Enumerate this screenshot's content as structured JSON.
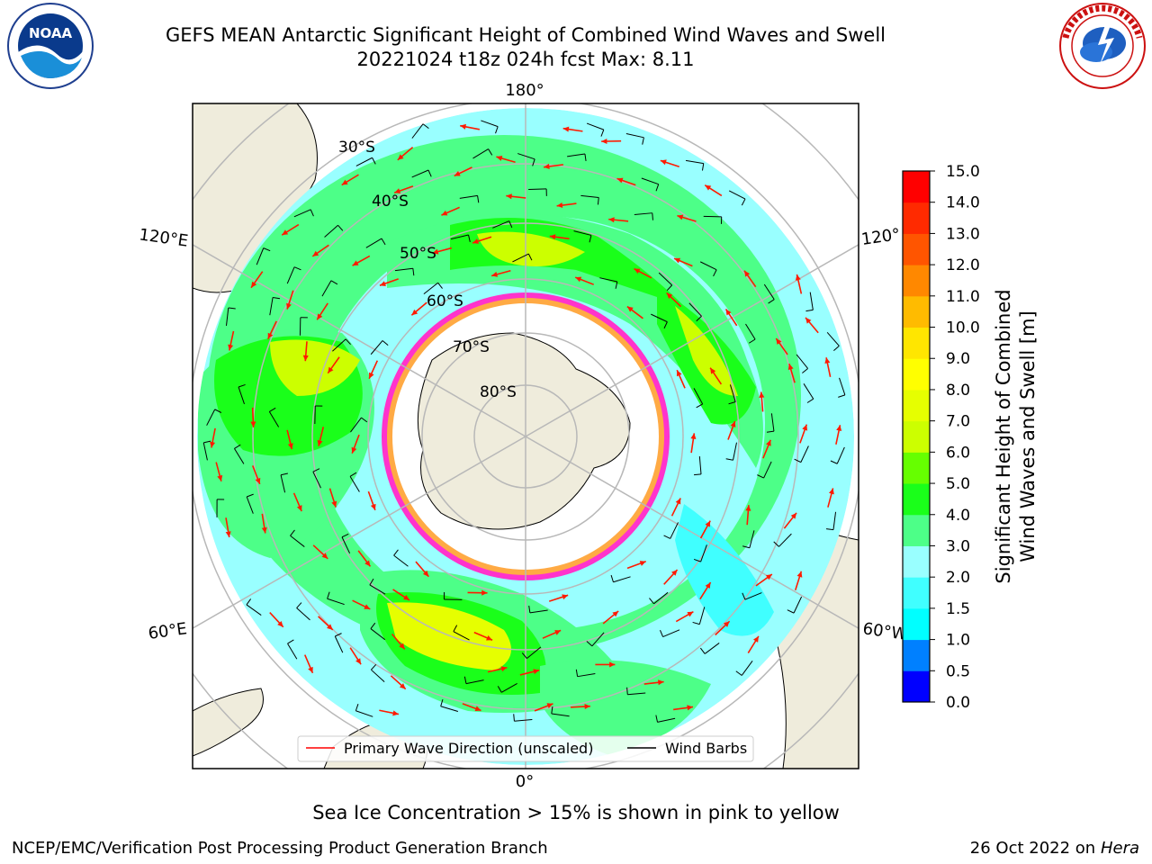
{
  "title": {
    "line1": "GEFS MEAN Antarctic Significant Height of Combined Wind Waves and Swell",
    "line2": "20221024 t18z 024h fcst   Max: 8.11"
  },
  "logos": {
    "left": {
      "icon": "noaa-logo",
      "text": "NOAA",
      "ring_text": "NATIONAL OCEANIC AND ATMOSPHERIC ADMINISTRATION · U.S. DEPARTMENT OF COMMERCE"
    },
    "right": {
      "icon": "nws-logo",
      "ring_text": "NATIONAL WEATHER SERVICE"
    }
  },
  "map": {
    "projection": "south-polar-stereographic",
    "lon_labels": [
      "180°",
      "120°E",
      "120°",
      "60°E",
      "60°W",
      "0°"
    ],
    "lat_labels": [
      "30°S",
      "40°S",
      "50°S",
      "60°S",
      "70°S",
      "80°S"
    ],
    "legend": [
      {
        "label": "Primary Wave Direction (unscaled)",
        "color": "#ff0000"
      },
      {
        "label": "Wind Barbs",
        "color": "#000000"
      }
    ],
    "colors": {
      "land": "#efecdc",
      "ice": "#ff33cc",
      "grid": "#b8b8b8"
    }
  },
  "colorbar": {
    "label_line1": "Significant Height of Combined",
    "label_line2": "Wind Waves and Swell [m]",
    "ticks": [
      "0.0",
      "0.5",
      "1.0",
      "1.5",
      "2.0",
      "3.0",
      "4.0",
      "5.0",
      "6.0",
      "7.0",
      "8.0",
      "9.0",
      "10.0",
      "11.0",
      "12.0",
      "13.0",
      "14.0",
      "15.0"
    ],
    "colors": [
      "#0000ff",
      "#0080ff",
      "#00ffff",
      "#40ffff",
      "#99ffff",
      "#4dff88",
      "#1aff1a",
      "#66ff00",
      "#ccff00",
      "#e6ff00",
      "#ffff00",
      "#ffe600",
      "#ffbb00",
      "#ff8800",
      "#ff5500",
      "#ff2a00",
      "#ff0000"
    ]
  },
  "caption": "Sea Ice Concentration > 15% is shown in pink to yellow",
  "footer": {
    "left": "NCEP/EMC/Verification Post Processing Product Generation Branch",
    "right_prefix": "26 Oct 2022 on ",
    "right_machine": "Hera"
  }
}
